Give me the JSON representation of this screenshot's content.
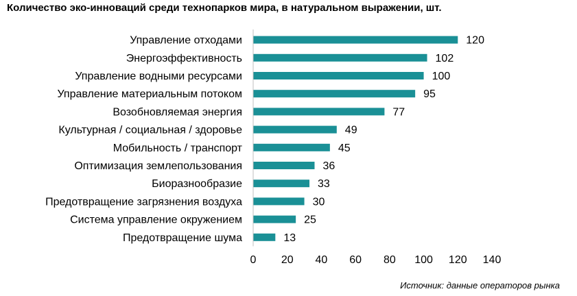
{
  "chart_data": {
    "type": "bar",
    "orientation": "horizontal",
    "title": "Количество эко-инноваций среди технопарков мира, в натуральном выражении, шт.",
    "categories": [
      "Управление отходами",
      "Энергоэффективность",
      "Управление водными ресурсами",
      "Управление материальным потоком",
      "Возобновляемая энергия",
      "Культурная / социальная / здоровье",
      "Мобильность / транспорт",
      "Оптимизация землепользования",
      "Биоразнообразие",
      "Предотвращение загрязнения воздуха",
      "Система управление окружением",
      "Предотвращение шума"
    ],
    "values": [
      120,
      102,
      100,
      95,
      77,
      49,
      45,
      36,
      33,
      30,
      25,
      13
    ],
    "xlim": [
      0,
      140
    ],
    "xticks": [
      0,
      20,
      40,
      60,
      80,
      100,
      120,
      140
    ],
    "grid": false,
    "bar_color": "#1a9096",
    "axis_color": "#bfbfbf"
  },
  "source": "Источник: данные операторов рынка"
}
